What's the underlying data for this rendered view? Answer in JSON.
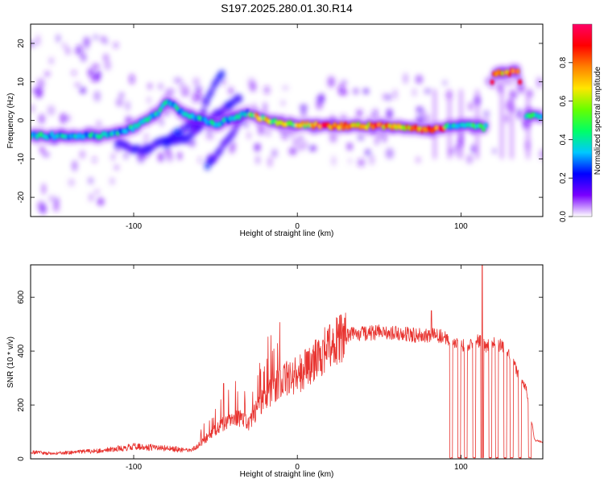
{
  "title": "S197.2025.280.01.30.R14",
  "chart_data": [
    {
      "type": "heatmap",
      "name": "spectrogram",
      "xlabel": "Height of straight line (km)",
      "ylabel": "Frequency (Hz)",
      "xlim": [
        -163,
        150
      ],
      "ylim": [
        -25,
        25
      ],
      "xticks": [
        "-100",
        "0",
        "100"
      ],
      "yticks": [
        "-20",
        "-10",
        "0",
        "10",
        "20"
      ],
      "colorbar": {
        "label": "Normalized spectral amplitude",
        "range": [
          0,
          1
        ],
        "ticks": [
          "0.0",
          "0.2",
          "0.4",
          "0.6",
          "0.8"
        ],
        "colors": [
          "#ffffff",
          "#7a00ff",
          "#0000ff",
          "#00c8ff",
          "#00ff66",
          "#66ff00",
          "#ffe600",
          "#ff8000",
          "#ff0000",
          "#ff0066"
        ]
      },
      "ridge": {
        "description": "main frequency trace",
        "points": [
          [
            -163,
            -4
          ],
          [
            -140,
            -4
          ],
          [
            -120,
            -4
          ],
          [
            -100,
            -2
          ],
          [
            -85,
            2
          ],
          [
            -80,
            5
          ],
          [
            -70,
            2
          ],
          [
            -50,
            -1
          ],
          [
            -30,
            2
          ],
          [
            -25,
            1
          ],
          [
            -10,
            -1
          ],
          [
            0,
            -1
          ],
          [
            20,
            -1.5
          ],
          [
            40,
            -1.5
          ],
          [
            60,
            -1.5
          ],
          [
            80,
            -2.5
          ],
          [
            95,
            -1.5
          ],
          [
            110,
            -1.5
          ],
          [
            115,
            -2
          ],
          [
            120,
            12.5
          ],
          [
            128,
            12.5
          ],
          [
            135,
            12.5
          ],
          [
            140,
            1
          ],
          [
            150,
            1
          ]
        ]
      },
      "secondary_ridges": [
        {
          "points": [
            [
              -110,
              -6
            ],
            [
              -95,
              -8
            ],
            [
              -80,
              -5
            ],
            [
              -60,
              0
            ],
            [
              -50,
              10
            ],
            [
              -45,
              13
            ]
          ]
        },
        {
          "points": [
            [
              -80,
              -6
            ],
            [
              -65,
              -4
            ],
            [
              -55,
              0
            ],
            [
              -45,
              3
            ],
            [
              -35,
              6
            ]
          ]
        },
        {
          "points": [
            [
              -55,
              -12
            ],
            [
              -48,
              -8
            ],
            [
              -40,
              -4
            ],
            [
              -35,
              0
            ],
            [
              -30,
              2
            ]
          ]
        }
      ]
    },
    {
      "type": "line",
      "name": "snr",
      "xlabel": "Height of straight line (km)",
      "ylabel": "SNR (10 * v/v)",
      "xlim": [
        -163,
        150
      ],
      "ylim": [
        0,
        720
      ],
      "xticks": [
        "-100",
        "0",
        "100"
      ],
      "yticks": [
        "0",
        "200",
        "400",
        "600"
      ],
      "color": "#e8332f",
      "envelope": {
        "x": [
          -163,
          -150,
          -120,
          -100,
          -80,
          -65,
          -55,
          -45,
          -40,
          -35,
          -30,
          -20,
          -10,
          0,
          10,
          20,
          30,
          40,
          50,
          60,
          70,
          80,
          85,
          90,
          95,
          100,
          105,
          110,
          115,
          120,
          125,
          130,
          135,
          140,
          145,
          150
        ],
        "y": [
          25,
          20,
          30,
          45,
          40,
          30,
          80,
          130,
          160,
          150,
          130,
          230,
          290,
          310,
          360,
          420,
          460,
          465,
          470,
          470,
          460,
          455,
          460,
          450,
          430,
          420,
          420,
          440,
          420,
          430,
          420,
          390,
          310,
          260,
          70,
          60
        ]
      },
      "dropouts_x": [
        94,
        99,
        103,
        108,
        113,
        118,
        122,
        127,
        131,
        136,
        142
      ],
      "spikes": [
        [
          113,
          720
        ],
        [
          -45,
          280
        ],
        [
          82,
          550
        ]
      ]
    }
  ]
}
